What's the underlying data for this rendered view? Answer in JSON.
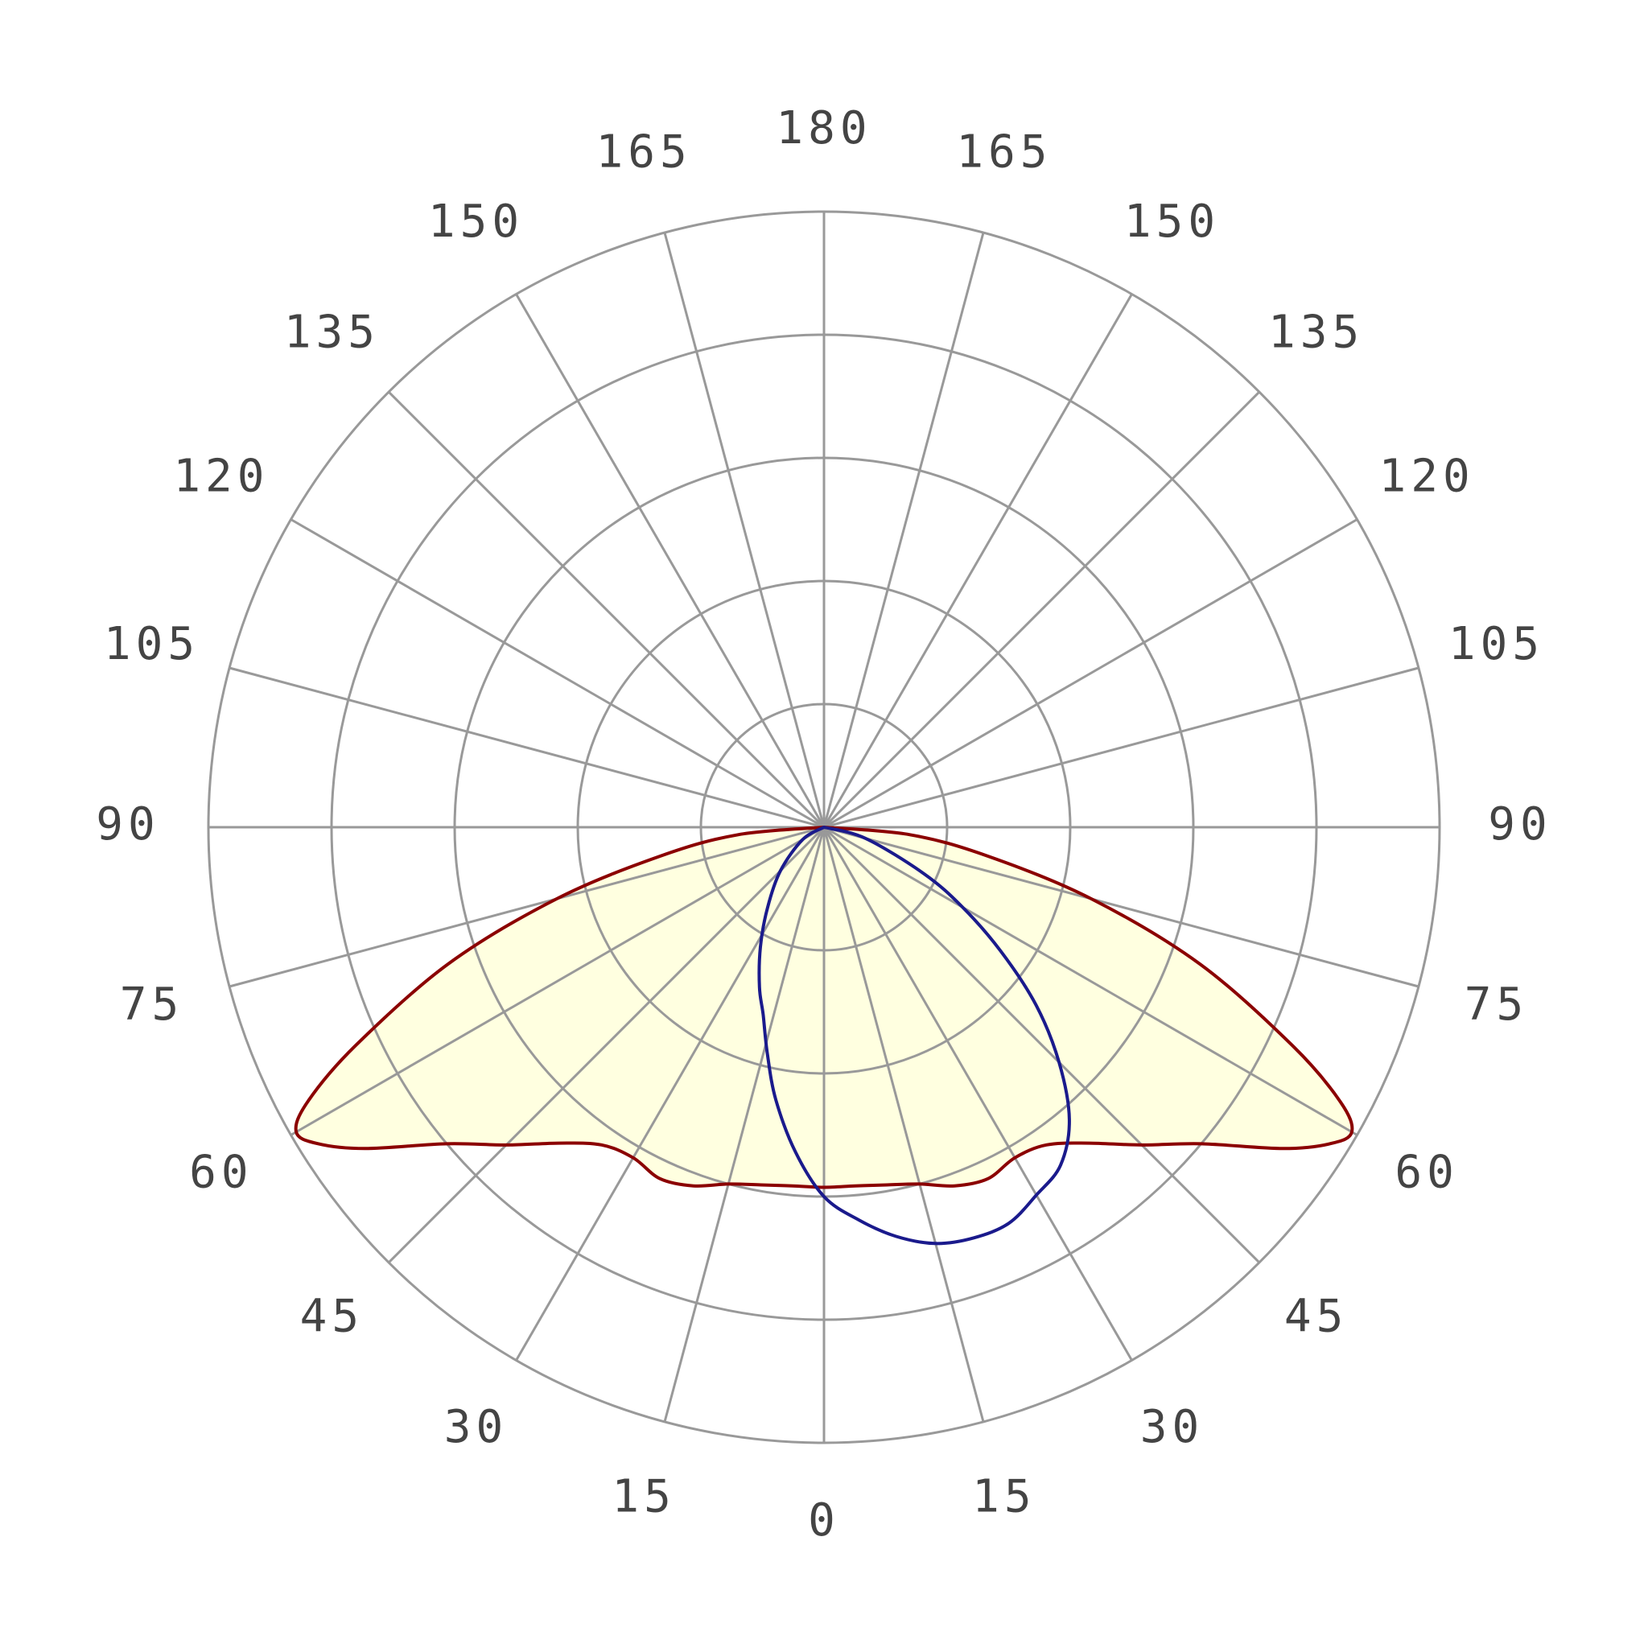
{
  "chart_data": {
    "type": "polar-line",
    "title": "",
    "angle_unit": "degrees",
    "angle_zero": "bottom",
    "angle_ticks": [
      0,
      15,
      30,
      45,
      60,
      75,
      90,
      105,
      120,
      135,
      150,
      165,
      180
    ],
    "radial_rings": 5,
    "radial_max": 1.0,
    "grid": true,
    "colors": {
      "grid": "#999999",
      "fill": "#ffffe0",
      "series_red": "#8b0000",
      "series_blue": "#1a1a8c",
      "label": "#444444"
    },
    "series": [
      {
        "color": "#8b0000",
        "filled": true,
        "points": [
          {
            "angle": -90,
            "r": 0.0
          },
          {
            "angle": -85,
            "r": 0.14
          },
          {
            "angle": -80,
            "r": 0.27
          },
          {
            "angle": -75,
            "r": 0.45
          },
          {
            "angle": -70,
            "r": 0.65
          },
          {
            "angle": -65,
            "r": 0.84
          },
          {
            "angle": -62,
            "r": 0.95
          },
          {
            "angle": -60,
            "r": 0.99
          },
          {
            "angle": -58,
            "r": 0.97
          },
          {
            "angle": -55,
            "r": 0.91
          },
          {
            "angle": -50,
            "r": 0.8
          },
          {
            "angle": -45,
            "r": 0.73
          },
          {
            "angle": -40,
            "r": 0.67
          },
          {
            "angle": -35,
            "r": 0.63
          },
          {
            "angle": -30,
            "r": 0.62
          },
          {
            "angle": -25,
            "r": 0.63
          },
          {
            "angle": -20,
            "r": 0.62
          },
          {
            "angle": -15,
            "r": 0.6
          },
          {
            "angle": -10,
            "r": 0.59
          },
          {
            "angle": -5,
            "r": 0.585
          },
          {
            "angle": 0,
            "r": 0.585
          },
          {
            "angle": 5,
            "r": 0.585
          },
          {
            "angle": 10,
            "r": 0.59
          },
          {
            "angle": 15,
            "r": 0.6
          },
          {
            "angle": 20,
            "r": 0.62
          },
          {
            "angle": 25,
            "r": 0.63
          },
          {
            "angle": 30,
            "r": 0.62
          },
          {
            "angle": 35,
            "r": 0.63
          },
          {
            "angle": 40,
            "r": 0.67
          },
          {
            "angle": 45,
            "r": 0.73
          },
          {
            "angle": 50,
            "r": 0.8
          },
          {
            "angle": 55,
            "r": 0.91
          },
          {
            "angle": 58,
            "r": 0.97
          },
          {
            "angle": 60,
            "r": 0.99
          },
          {
            "angle": 62,
            "r": 0.95
          },
          {
            "angle": 65,
            "r": 0.84
          },
          {
            "angle": 70,
            "r": 0.65
          },
          {
            "angle": 75,
            "r": 0.45
          },
          {
            "angle": 80,
            "r": 0.27
          },
          {
            "angle": 85,
            "r": 0.14
          },
          {
            "angle": 90,
            "r": 0.0
          }
        ]
      },
      {
        "color": "#1a1a8c",
        "filled": false,
        "points": [
          {
            "angle": -90,
            "r": 0.0
          },
          {
            "angle": -60,
            "r": 0.04
          },
          {
            "angle": -45,
            "r": 0.1
          },
          {
            "angle": -35,
            "r": 0.16
          },
          {
            "angle": -28,
            "r": 0.22
          },
          {
            "angle": -22,
            "r": 0.28
          },
          {
            "angle": -18,
            "r": 0.32
          },
          {
            "angle": -14,
            "r": 0.38
          },
          {
            "angle": -10,
            "r": 0.45
          },
          {
            "angle": -5,
            "r": 0.53
          },
          {
            "angle": 0,
            "r": 0.6
          },
          {
            "angle": 5,
            "r": 0.64
          },
          {
            "angle": 10,
            "r": 0.675
          },
          {
            "angle": 15,
            "r": 0.7
          },
          {
            "angle": 20,
            "r": 0.71
          },
          {
            "angle": 25,
            "r": 0.71
          },
          {
            "angle": 30,
            "r": 0.69
          },
          {
            "angle": 35,
            "r": 0.67
          },
          {
            "angle": 40,
            "r": 0.62
          },
          {
            "angle": 45,
            "r": 0.54
          },
          {
            "angle": 50,
            "r": 0.45
          },
          {
            "angle": 55,
            "r": 0.35
          },
          {
            "angle": 60,
            "r": 0.26
          },
          {
            "angle": 65,
            "r": 0.18
          },
          {
            "angle": 75,
            "r": 0.07
          },
          {
            "angle": 90,
            "r": 0.0
          }
        ]
      }
    ]
  }
}
